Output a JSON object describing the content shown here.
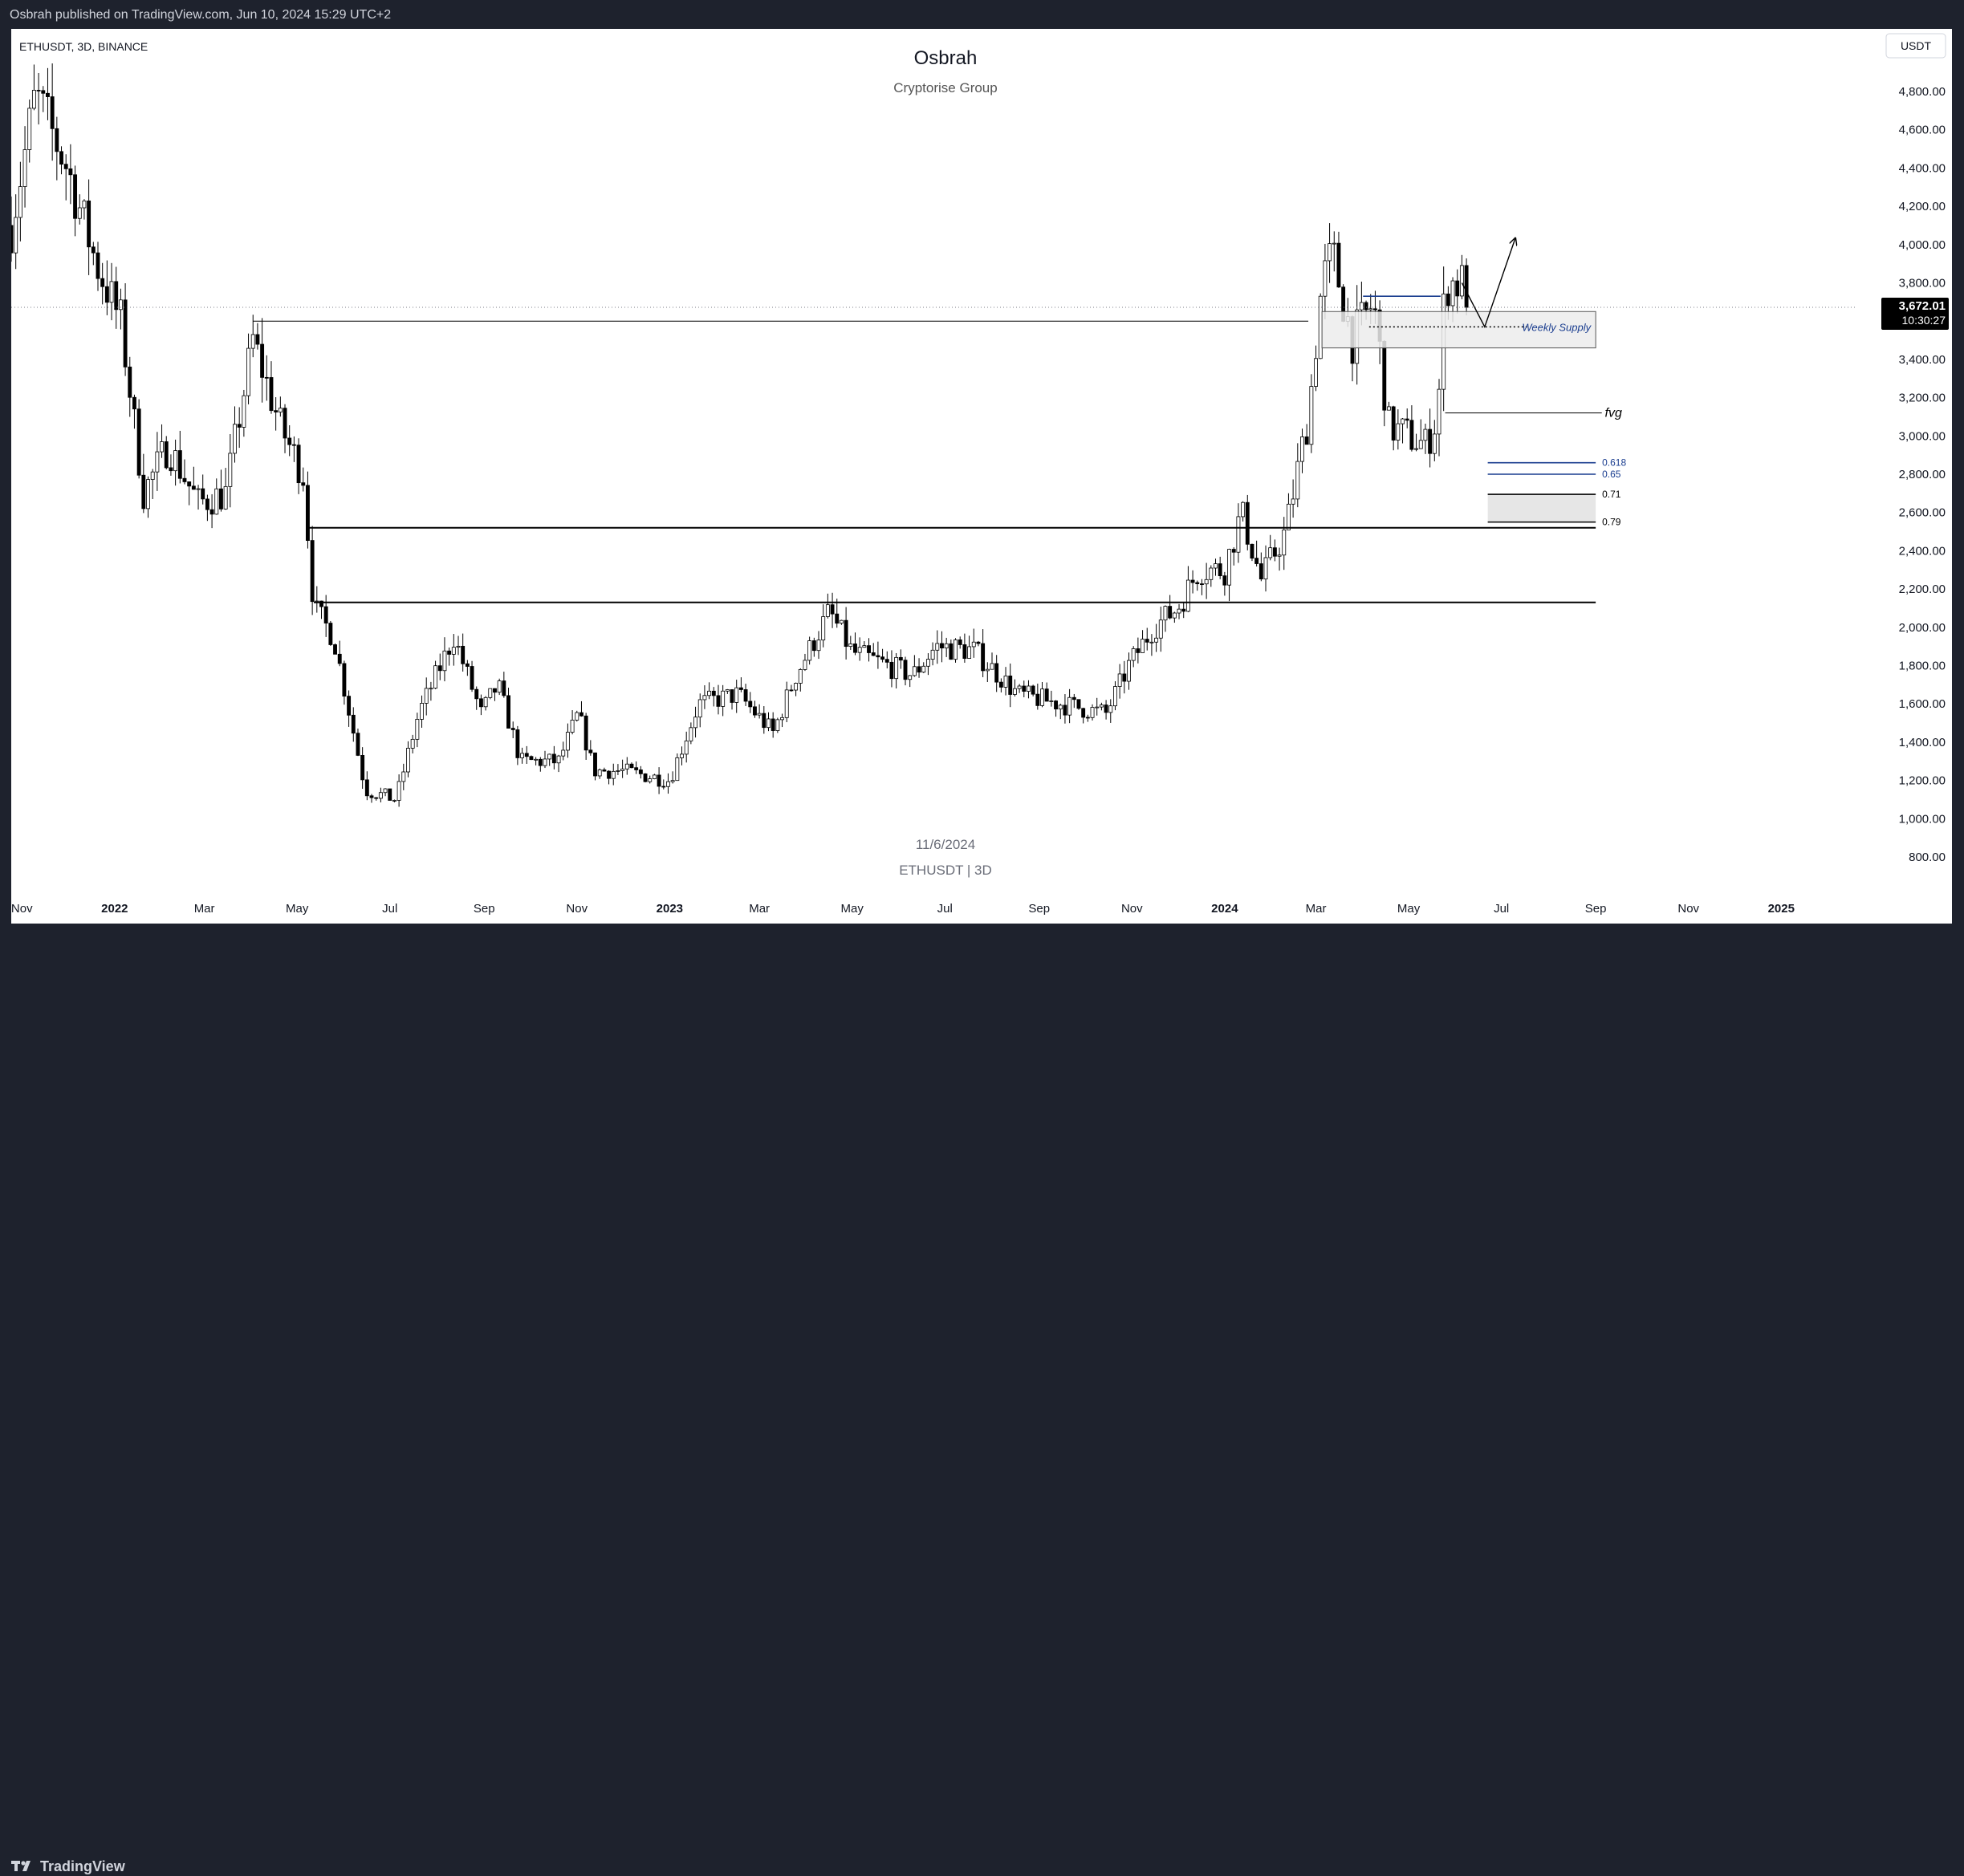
{
  "header": {
    "publisher_text": "Osbrah published on TradingView.com, Jun 10, 2024 15:29 UTC+2"
  },
  "chart_header": {
    "symbol_info": "ETHUSDT, 3D, BINANCE",
    "author": "Osbrah",
    "subtitle": "Cryptorise Group",
    "currency": "USDT"
  },
  "watermark": {
    "date": "11/6/2024",
    "symbol": "ETHUSDT | 3D"
  },
  "footer": {
    "brand": "TradingView",
    "logo_icon": "tradingview-logo-icon"
  },
  "price_tag": {
    "price": "3,672.01",
    "countdown": "10:30:27"
  },
  "colors": {
    "candle_up": "#ffffff",
    "candle_down": "#000000",
    "fib_blue": "#1a3d8f",
    "zone_fill": "#ececec",
    "frame_bg": "#1e222d"
  },
  "chart_data": {
    "type": "candlestick",
    "interval": "3D",
    "symbol": "ETHUSDT",
    "exchange": "BINANCE",
    "ylim": [
      750,
      4950
    ],
    "y_ticks": [
      800,
      1000,
      1200,
      1400,
      1600,
      1800,
      2000,
      2200,
      2400,
      2600,
      2800,
      3000,
      3200,
      3400,
      3600,
      3800,
      4000,
      4200,
      4400,
      4600,
      4800
    ],
    "y_tick_labels": [
      "800.00",
      "1,000.00",
      "1,200.00",
      "1,400.00",
      "1,600.00",
      "1,800.00",
      "2,000.00",
      "2,200.00",
      "2,400.00",
      "2,600.00",
      "2,800.00",
      "3,000.00",
      "3,200.00",
      "3,400.00",
      "3,600.00",
      "3,800.00",
      "4,000.00",
      "4,200.00",
      "4,400.00",
      "4,600.00",
      "4,800.00"
    ],
    "x_range": [
      "2021-10-25",
      "2025-02-20"
    ],
    "x_ticks": [
      {
        "date": "2021-11-01",
        "label": "Nov"
      },
      {
        "date": "2022-01-01",
        "label": "2022"
      },
      {
        "date": "2022-03-01",
        "label": "Mar"
      },
      {
        "date": "2022-05-01",
        "label": "May"
      },
      {
        "date": "2022-07-01",
        "label": "Jul"
      },
      {
        "date": "2022-09-01",
        "label": "Sep"
      },
      {
        "date": "2022-11-01",
        "label": "Nov"
      },
      {
        "date": "2023-01-01",
        "label": "2023"
      },
      {
        "date": "2023-03-01",
        "label": "Mar"
      },
      {
        "date": "2023-05-01",
        "label": "May"
      },
      {
        "date": "2023-07-01",
        "label": "Jul"
      },
      {
        "date": "2023-09-01",
        "label": "Sep"
      },
      {
        "date": "2023-11-01",
        "label": "Nov"
      },
      {
        "date": "2024-01-01",
        "label": "2024"
      },
      {
        "date": "2024-03-01",
        "label": "Mar"
      },
      {
        "date": "2024-05-01",
        "label": "May"
      },
      {
        "date": "2024-07-01",
        "label": "Jul"
      },
      {
        "date": "2024-09-01",
        "label": "Sep"
      },
      {
        "date": "2024-11-01",
        "label": "Nov"
      },
      {
        "date": "2025-01-01",
        "label": "2025"
      }
    ],
    "close_path": [
      [
        "2021-10-25",
        4100
      ],
      [
        "2021-11-10",
        4780
      ],
      [
        "2021-12-01",
        4400
      ],
      [
        "2021-12-20",
        3900
      ],
      [
        "2022-01-05",
        3600
      ],
      [
        "2022-01-20",
        2700
      ],
      [
        "2022-02-05",
        2950
      ],
      [
        "2022-02-25",
        2650
      ],
      [
        "2022-03-15",
        2700
      ],
      [
        "2022-04-02",
        3500
      ],
      [
        "2022-04-20",
        3050
      ],
      [
        "2022-05-05",
        2800
      ],
      [
        "2022-05-12",
        2100
      ],
      [
        "2022-05-25",
        1950
      ],
      [
        "2022-06-15",
        1150
      ],
      [
        "2022-07-05",
        1100
      ],
      [
        "2022-07-20",
        1550
      ],
      [
        "2022-08-12",
        1950
      ],
      [
        "2022-08-30",
        1550
      ],
      [
        "2022-09-10",
        1700
      ],
      [
        "2022-09-25",
        1300
      ],
      [
        "2022-10-20",
        1300
      ],
      [
        "2022-11-02",
        1550
      ],
      [
        "2022-11-12",
        1250
      ],
      [
        "2022-12-01",
        1250
      ],
      [
        "2023-01-01",
        1200
      ],
      [
        "2023-01-20",
        1600
      ],
      [
        "2023-02-15",
        1650
      ],
      [
        "2023-03-10",
        1450
      ],
      [
        "2023-03-25",
        1750
      ],
      [
        "2023-04-16",
        2080
      ],
      [
        "2023-05-01",
        1870
      ],
      [
        "2023-06-10",
        1750
      ],
      [
        "2023-06-25",
        1900
      ],
      [
        "2023-07-20",
        1880
      ],
      [
        "2023-08-18",
        1650
      ],
      [
        "2023-09-15",
        1600
      ],
      [
        "2023-10-15",
        1550
      ],
      [
        "2023-10-30",
        1800
      ],
      [
        "2023-11-15",
        2000
      ],
      [
        "2023-12-01",
        2100
      ],
      [
        "2023-12-15",
        2300
      ],
      [
        "2024-01-01",
        2300
      ],
      [
        "2024-01-12",
        2600
      ],
      [
        "2024-01-25",
        2250
      ],
      [
        "2024-02-10",
        2500
      ],
      [
        "2024-02-25",
        3100
      ],
      [
        "2024-03-05",
        3800
      ],
      [
        "2024-03-12",
        3950
      ],
      [
        "2024-03-25",
        3500
      ],
      [
        "2024-04-08",
        3700
      ],
      [
        "2024-04-18",
        3050
      ],
      [
        "2024-05-01",
        3000
      ],
      [
        "2024-05-12",
        2950
      ],
      [
        "2024-05-20",
        3100
      ],
      [
        "2024-05-25",
        3800
      ],
      [
        "2024-06-05",
        3800
      ],
      [
        "2024-06-10",
        3672
      ]
    ],
    "last_price": 3672.01,
    "horizontal_lines": [
      {
        "y": 3600,
        "from": "2022-04-02",
        "to": "2024-02-25",
        "style": "solid-thin"
      },
      {
        "y": 2520,
        "from": "2022-05-07",
        "to": "2024-09-01",
        "style": "solid-thick"
      },
      {
        "y": 2130,
        "from": "2022-05-12",
        "to": "2024-09-01",
        "style": "solid-thick"
      },
      {
        "y": 3120,
        "from": "2024-05-25",
        "to": "2024-09-05",
        "style": "solid-thin"
      }
    ],
    "supply_zone": {
      "label": "Weekly Supply",
      "y_top": 3650,
      "y_bottom": 3460,
      "x_from": "2024-03-05",
      "x_to": "2024-09-01",
      "midline": 3570
    },
    "resistance_segment": {
      "y": 3730,
      "from": "2024-04-01",
      "to": "2024-05-22"
    },
    "fib_levels": [
      {
        "label": "0.618",
        "value": 2860,
        "color": "#1a3d8f"
      },
      {
        "label": "0.65",
        "value": 2800,
        "color": "#1a3d8f"
      },
      {
        "label": "0.71",
        "value": 2695,
        "color": "#000000"
      },
      {
        "label": "0.79",
        "value": 2550,
        "color": "#000000"
      }
    ],
    "fib_zone": {
      "x_from": "2024-06-22",
      "x_to": "2024-09-01"
    },
    "annotations": [
      {
        "text": "fvg",
        "y": 3120,
        "x": "2024-09-07"
      }
    ],
    "projection_path": [
      [
        "2024-06-05",
        3800
      ],
      [
        "2024-06-20",
        3570
      ],
      [
        "2024-07-10",
        4030
      ]
    ]
  }
}
